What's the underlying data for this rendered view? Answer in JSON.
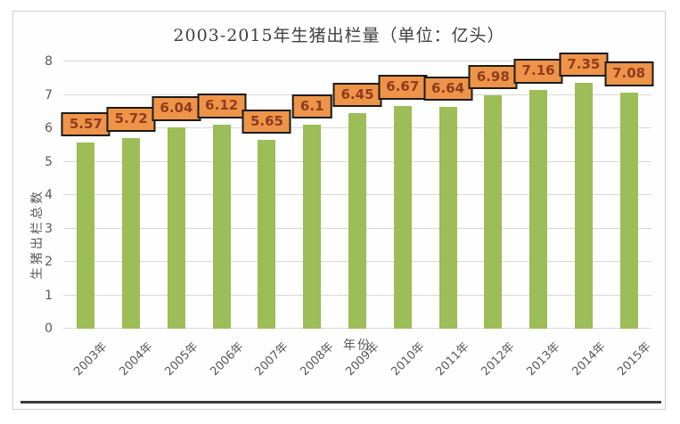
{
  "colors": {
    "bar": "#9cbd58",
    "label_bg": "#ee9449",
    "label_border": "#1b1b1b",
    "label_text": "#8f3c1f",
    "grid": "#d9d9d9",
    "axis_text": "#595959",
    "title_text": "#404040",
    "underline": "#3b3b3b",
    "frame_border": "#cdd1d5"
  },
  "chart_data": {
    "type": "bar",
    "title": "2003-2015年生猪出栏量（单位：亿头）",
    "xlabel": "年份",
    "ylabel": "生猪出栏总数",
    "categories": [
      "2003年",
      "2004年",
      "2005年",
      "2006年",
      "2007年",
      "2008年",
      "2009年",
      "2010年",
      "2011年",
      "2012年",
      "2013年",
      "2014年",
      "2015年"
    ],
    "values": [
      5.57,
      5.72,
      6.04,
      6.12,
      5.65,
      6.1,
      6.45,
      6.67,
      6.64,
      6.98,
      7.16,
      7.35,
      7.08
    ],
    "data_labels": [
      "5.57",
      "5.72",
      "6.04",
      "6.12",
      "5.65",
      "6.1",
      "6.45",
      "6.67",
      "6.64",
      "6.98",
      "7.16",
      "7.35",
      "7.08"
    ],
    "ylim": [
      0,
      8
    ],
    "yticks": [
      0,
      1,
      2,
      3,
      4,
      5,
      6,
      7,
      8
    ],
    "grid": true,
    "legend": false
  }
}
